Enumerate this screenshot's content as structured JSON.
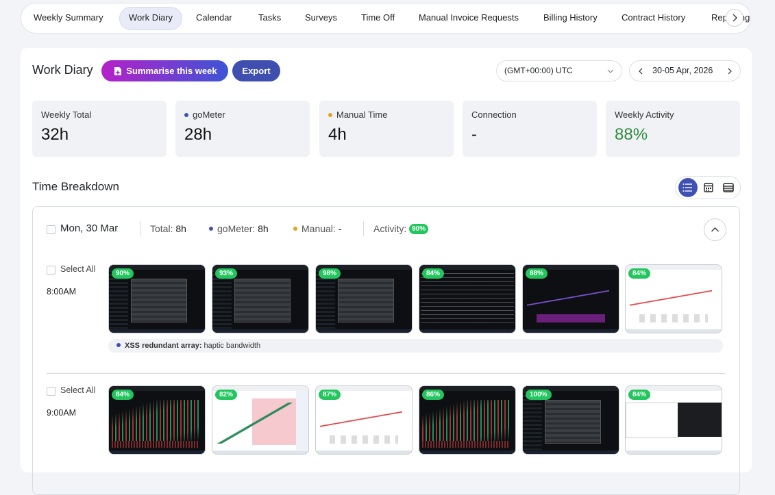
{
  "tabs": [
    "Weekly Summary",
    "Work Diary",
    "Calendar",
    "Tasks",
    "Surveys",
    "Time Off",
    "Manual Invoice Requests",
    "Billing History",
    "Contract History",
    "Reporting"
  ],
  "header": {
    "title": "Work Diary",
    "summarise_button": "Summarise this week",
    "export_button": "Export",
    "timezone": "(GMT+00:00) UTC",
    "date_range": "30-05 Apr, 2026"
  },
  "stats": [
    {
      "label": "Weekly Total",
      "value": "32h"
    },
    {
      "label": "goMeter",
      "value": "28h"
    },
    {
      "label": "Manual Time",
      "value": "4h"
    },
    {
      "label": "Connection",
      "value": "-"
    },
    {
      "label": "Weekly Activity",
      "value": "88%"
    }
  ],
  "section_title": "Time Breakdown",
  "day": {
    "date": "Mon, 30 Mar",
    "total_label": "Total:",
    "total": "8h",
    "gometer_label": "goMeter:",
    "gometer": "8h",
    "manual_label": "Manual:",
    "manual": "-",
    "activity_label": "Activity:",
    "activity": "90%",
    "slots": [
      {
        "select_all": "Select All",
        "time": "8:00AM",
        "screenshots": [
          "90%",
          "93%",
          "98%",
          "84%",
          "88%",
          "84%"
        ],
        "memo": {
          "title": "XSS redundant array:",
          "text": "haptic bandwidth"
        }
      },
      {
        "select_all": "Select All",
        "time": "9:00AM",
        "screenshots": [
          "84%",
          "82%",
          "87%",
          "86%",
          "100%",
          "84%"
        ]
      }
    ]
  }
}
